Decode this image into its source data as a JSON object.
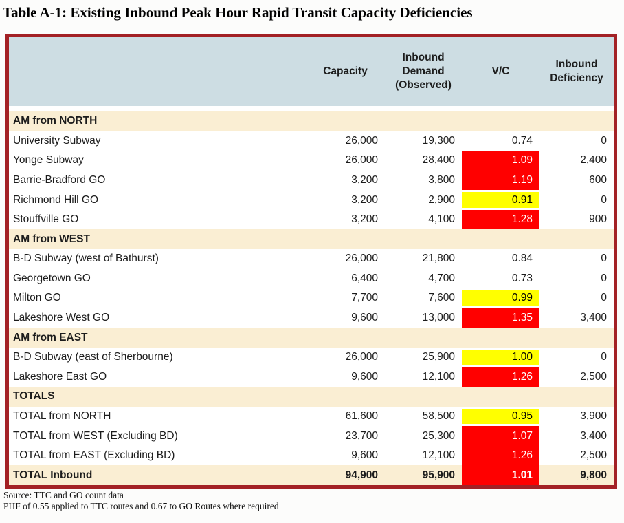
{
  "title": "Table A-1: Existing Inbound Peak Hour Rapid Transit Capacity Deficiencies",
  "table": {
    "header": {
      "route": "",
      "capacity": "Capacity",
      "demand": "Inbound Demand (Observed)",
      "vc": "V/C",
      "deficiency": "Inbound Deficiency"
    },
    "rows": [
      {
        "type": "section",
        "label": "AM from NORTH"
      },
      {
        "type": "data",
        "name": "University Subway",
        "capacity": "26,000",
        "demand": "19,300",
        "vc": "0.74",
        "vc_status": "none",
        "deficiency": "0"
      },
      {
        "type": "data",
        "name": "Yonge Subway",
        "capacity": "26,000",
        "demand": "28,400",
        "vc": "1.09",
        "vc_status": "red",
        "deficiency": "2,400"
      },
      {
        "type": "data",
        "name": "Barrie-Bradford GO",
        "capacity": "3,200",
        "demand": "3,800",
        "vc": "1.19",
        "vc_status": "red",
        "deficiency": "600"
      },
      {
        "type": "data",
        "name": "Richmond Hill GO",
        "capacity": "3,200",
        "demand": "2,900",
        "vc": "0.91",
        "vc_status": "yellow",
        "deficiency": "0"
      },
      {
        "type": "data",
        "name": "Stouffville GO",
        "capacity": "3,200",
        "demand": "4,100",
        "vc": "1.28",
        "vc_status": "red",
        "deficiency": "900"
      },
      {
        "type": "section",
        "label": "AM from WEST"
      },
      {
        "type": "data",
        "name": "B-D Subway (west of Bathurst)",
        "capacity": "26,000",
        "demand": "21,800",
        "vc": "0.84",
        "vc_status": "none",
        "deficiency": "0"
      },
      {
        "type": "data",
        "name": "Georgetown GO",
        "capacity": "6,400",
        "demand": "4,700",
        "vc": "0.73",
        "vc_status": "none",
        "deficiency": "0"
      },
      {
        "type": "data",
        "name": "Milton GO",
        "capacity": "7,700",
        "demand": "7,600",
        "vc": "0.99",
        "vc_status": "yellow",
        "deficiency": "0"
      },
      {
        "type": "data",
        "name": "Lakeshore West GO",
        "capacity": "9,600",
        "demand": "13,000",
        "vc": "1.35",
        "vc_status": "red",
        "deficiency": "3,400"
      },
      {
        "type": "section",
        "label": "AM from EAST"
      },
      {
        "type": "data",
        "name": "B-D Subway (east of Sherbourne)",
        "capacity": "26,000",
        "demand": "25,900",
        "vc": "1.00",
        "vc_status": "yellow",
        "deficiency": "0"
      },
      {
        "type": "data",
        "name": "Lakeshore East GO",
        "capacity": "9,600",
        "demand": "12,100",
        "vc": "1.26",
        "vc_status": "red",
        "deficiency": "2,500"
      },
      {
        "type": "section",
        "label": "TOTALS"
      },
      {
        "type": "data",
        "name": "TOTAL from NORTH",
        "capacity": "61,600",
        "demand": "58,500",
        "vc": "0.95",
        "vc_status": "yellow",
        "deficiency": "3,900"
      },
      {
        "type": "data",
        "name": "TOTAL from WEST (Excluding BD)",
        "capacity": "23,700",
        "demand": "25,300",
        "vc": "1.07",
        "vc_status": "red",
        "deficiency": "3,400"
      },
      {
        "type": "data",
        "name": "TOTAL from EAST (Excluding BD)",
        "capacity": "9,600",
        "demand": "12,100",
        "vc": "1.26",
        "vc_status": "red",
        "deficiency": "2,500"
      },
      {
        "type": "total",
        "name": "TOTAL Inbound",
        "capacity": "94,900",
        "demand": "95,900",
        "vc": "1.01",
        "vc_status": "red",
        "deficiency": "9,800"
      }
    ]
  },
  "footnotes": [
    "Source: TTC and GO count data",
    "PHF of 0.55 applied to TTC routes and 0.67 to GO Routes where required"
  ],
  "colors": {
    "table_border": "#a32125",
    "header_bg": "#cddde3",
    "section_bg": "#faeed3",
    "vc_red": "#ff0000",
    "vc_yellow": "#ffff00"
  }
}
